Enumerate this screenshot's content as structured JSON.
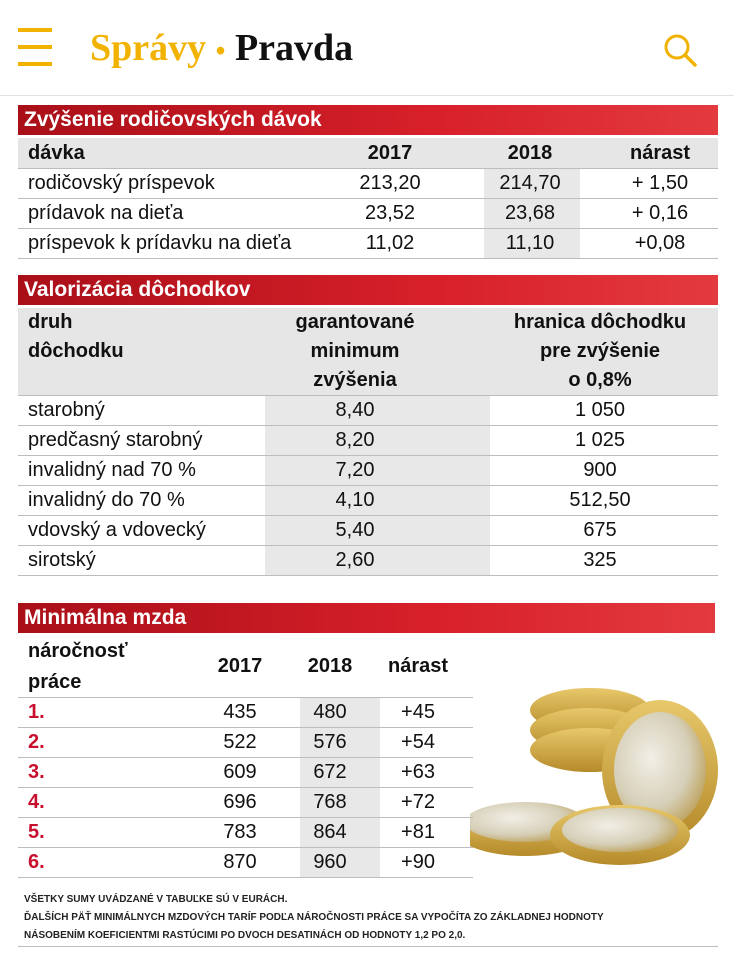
{
  "header": {
    "section": "Správy",
    "separator": "•",
    "brand": "Pravda"
  },
  "parental": {
    "title": "Zvýšenie rodičovských dávok",
    "columns": [
      "dávka",
      "2017",
      "2018",
      "nárast"
    ],
    "rows": [
      [
        "rodičovský príspevok",
        "213,20",
        "214,70",
        "+ 1,50"
      ],
      [
        "prídavok na dieťa",
        "23,52",
        "23,68",
        "+ 0,16"
      ],
      [
        "príspevok k prídavku na dieťa",
        "11,02",
        "11,10",
        "+0,08"
      ]
    ]
  },
  "pensions": {
    "title": "Valorizácia dôchodkov",
    "columns": [
      [
        "druh",
        "dôchodku"
      ],
      [
        "garantované",
        "minimum",
        "zvýšenia"
      ],
      [
        "hranica dôchodku",
        "pre zvýšenie",
        "o 0,8%"
      ]
    ],
    "rows": [
      [
        "starobný",
        "8,40",
        "1 050"
      ],
      [
        "predčasný starobný",
        "8,20",
        "1 025"
      ],
      [
        "invalidný nad 70 %",
        "7,20",
        "900"
      ],
      [
        "invalidný do 70 %",
        "4,10",
        "512,50"
      ],
      [
        "vdovský a vdovecký",
        "5,40",
        "675"
      ],
      [
        "sirotský",
        "2,60",
        "325"
      ]
    ]
  },
  "wage": {
    "title": "Minimálna mzda",
    "columns": [
      [
        "náročnosť",
        "práce"
      ],
      [
        "2017"
      ],
      [
        "2018"
      ],
      [
        "nárast"
      ]
    ],
    "rows": [
      [
        "1.",
        "435",
        "480",
        "+45"
      ],
      [
        "2.",
        "522",
        "576",
        "+54"
      ],
      [
        "3.",
        "609",
        "672",
        "+63"
      ],
      [
        "4.",
        "696",
        "768",
        "+72"
      ],
      [
        "5.",
        "783",
        "864",
        "+81"
      ],
      [
        "6.",
        "870",
        "960",
        "+90"
      ]
    ]
  },
  "footnotes": [
    "VŠETKY SUMY UVÁDZANÉ V TABUĽKE SÚ V EURÁCH.",
    "ĎALŠÍCH PÄŤ MINIMÁLNYCH MZDOVÝCH TARÍF PODĽA NÁROČNOSTI PRÁCE SA VYPOČÍTA ZO ZÁKLADNEJ HODNOTY",
    "NÁSOBENÍM KOEFICIENTMI RASTÚCIMI PO DVOCH DESATINÁCH OD HODNOTY 1,2 PO 2,0."
  ]
}
